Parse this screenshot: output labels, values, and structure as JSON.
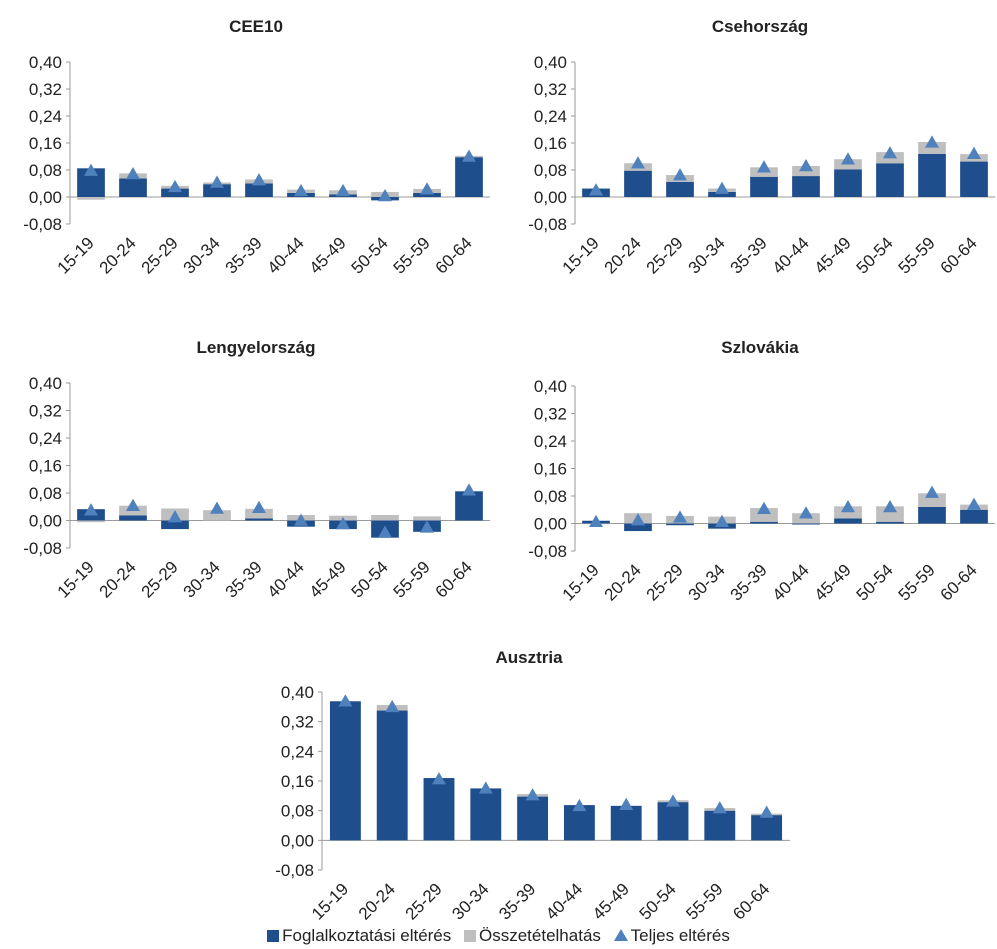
{
  "colors": {
    "foglalkoztatasi": "#1F4E8C",
    "osszetetel": "#BFBFBF",
    "teljes": "#4F81BD",
    "axis": "#9a9a9a",
    "text": "#222222"
  },
  "legend": {
    "items": [
      {
        "label": "Foglalkoztatási eltérés",
        "marker": "square",
        "color": "#1F4E8C"
      },
      {
        "label": "Összetételhatás",
        "marker": "square",
        "color": "#BFBFBF"
      },
      {
        "label": "Teljes eltérés",
        "marker": "triangle",
        "color": "#4F81BD"
      }
    ]
  },
  "chart_data": [
    {
      "type": "bar",
      "title": "CEE10",
      "categories": [
        "15-19",
        "20-24",
        "25-29",
        "30-34",
        "35-39",
        "40-44",
        "45-49",
        "50-54",
        "55-59",
        "60-64"
      ],
      "ylim": [
        -0.08,
        0.4
      ],
      "yticks": [
        "0,40",
        "0,32",
        "0,24",
        "0,16",
        "0,08",
        "0,00",
        "-0,08"
      ],
      "grid": false,
      "series": [
        {
          "name": "Foglalkoztatási eltérés",
          "kind": "bar",
          "values": [
            0.085,
            0.055,
            0.025,
            0.038,
            0.04,
            0.012,
            0.008,
            -0.01,
            0.012,
            0.118
          ]
        },
        {
          "name": "Összetételhatás",
          "kind": "bar",
          "values": [
            -0.008,
            0.015,
            0.008,
            0.005,
            0.012,
            0.01,
            0.012,
            0.015,
            0.012,
            0.004
          ]
        },
        {
          "name": "Teljes eltérés",
          "kind": "marker",
          "values": [
            0.078,
            0.068,
            0.03,
            0.043,
            0.05,
            0.018,
            0.018,
            0.003,
            0.023,
            0.12
          ]
        }
      ]
    },
    {
      "type": "bar",
      "title": "Csehország",
      "categories": [
        "15-19",
        "20-24",
        "25-29",
        "30-34",
        "35-39",
        "40-44",
        "45-49",
        "50-54",
        "55-59",
        "60-64"
      ],
      "ylim": [
        -0.08,
        0.4
      ],
      "yticks": [
        "0,40",
        "0,32",
        "0,24",
        "0,16",
        "0,08",
        "0,00",
        "-0,08"
      ],
      "grid": false,
      "series": [
        {
          "name": "Foglalkoztatási eltérés",
          "kind": "bar",
          "values": [
            0.025,
            0.078,
            0.045,
            0.015,
            0.06,
            0.062,
            0.082,
            0.1,
            0.128,
            0.105
          ]
        },
        {
          "name": "Összetételhatás",
          "kind": "bar",
          "values": [
            0.0,
            0.022,
            0.02,
            0.01,
            0.028,
            0.03,
            0.03,
            0.033,
            0.035,
            0.022
          ]
        },
        {
          "name": "Teljes eltérés",
          "kind": "marker",
          "values": [
            0.02,
            0.1,
            0.065,
            0.025,
            0.088,
            0.092,
            0.112,
            0.13,
            0.162,
            0.128
          ]
        }
      ]
    },
    {
      "type": "bar",
      "title": "Lengyelország",
      "categories": [
        "15-19",
        "20-24",
        "25-29",
        "30-34",
        "35-39",
        "40-44",
        "45-49",
        "50-54",
        "55-59",
        "60-64"
      ],
      "ylim": [
        -0.08,
        0.4
      ],
      "yticks": [
        "0,40",
        "0,32",
        "0,24",
        "0,16",
        "0,08",
        "0,00",
        "-0,08"
      ],
      "grid": false,
      "series": [
        {
          "name": "Foglalkoztatási eltérés",
          "kind": "bar",
          "values": [
            0.033,
            0.015,
            -0.025,
            0.0,
            0.006,
            -0.018,
            -0.025,
            -0.05,
            -0.033,
            0.085
          ]
        },
        {
          "name": "Összetételhatás",
          "kind": "bar",
          "values": [
            -0.005,
            0.028,
            0.035,
            0.03,
            0.028,
            0.016,
            0.014,
            0.016,
            0.012,
            0.0
          ]
        },
        {
          "name": "Teljes eltérés",
          "kind": "marker",
          "values": [
            0.03,
            0.043,
            0.01,
            0.035,
            0.037,
            0.0,
            -0.01,
            -0.035,
            -0.02,
            0.088
          ]
        }
      ]
    },
    {
      "type": "bar",
      "title": "Szlovákia",
      "categories": [
        "15-19",
        "20-24",
        "25-29",
        "30-34",
        "35-39",
        "40-44",
        "45-49",
        "50-54",
        "55-59",
        "60-64"
      ],
      "ylim": [
        -0.08,
        0.4
      ],
      "yticks": [
        "0,40",
        "0,32",
        "0,24",
        "0,16",
        "0,08",
        "0,00",
        "-0,08"
      ],
      "grid": false,
      "series": [
        {
          "name": "Foglalkoztatási eltérés",
          "kind": "bar",
          "values": [
            0.008,
            -0.022,
            -0.005,
            -0.015,
            0.005,
            -0.003,
            0.015,
            0.005,
            0.048,
            0.04
          ]
        },
        {
          "name": "Összetételhatás",
          "kind": "bar",
          "values": [
            -0.002,
            0.03,
            0.022,
            0.02,
            0.04,
            0.03,
            0.035,
            0.045,
            0.04,
            0.015
          ]
        },
        {
          "name": "Teljes eltérés",
          "kind": "marker",
          "values": [
            0.005,
            0.01,
            0.018,
            0.005,
            0.043,
            0.03,
            0.048,
            0.048,
            0.09,
            0.055
          ]
        }
      ]
    },
    {
      "type": "bar",
      "title": "Ausztria",
      "categories": [
        "15-19",
        "20-24",
        "25-29",
        "30-34",
        "35-39",
        "40-44",
        "45-49",
        "50-54",
        "55-59",
        "60-64"
      ],
      "ylim": [
        -0.08,
        0.4
      ],
      "yticks": [
        "0,40",
        "0,32",
        "0,24",
        "0,16",
        "0,08",
        "0,00",
        "-0,08"
      ],
      "grid": false,
      "series": [
        {
          "name": "Foglalkoztatási eltérés",
          "kind": "bar",
          "values": [
            0.375,
            0.35,
            0.168,
            0.14,
            0.118,
            0.095,
            0.093,
            0.103,
            0.08,
            0.068
          ]
        },
        {
          "name": "Összetételhatás",
          "kind": "bar",
          "values": [
            0.0,
            0.015,
            0.0,
            0.0,
            0.007,
            0.0,
            0.0,
            0.005,
            0.007,
            0.004
          ]
        },
        {
          "name": "Teljes eltérés",
          "kind": "marker",
          "values": [
            0.375,
            0.36,
            0.165,
            0.14,
            0.122,
            0.093,
            0.096,
            0.105,
            0.087,
            0.075
          ]
        }
      ]
    }
  ]
}
